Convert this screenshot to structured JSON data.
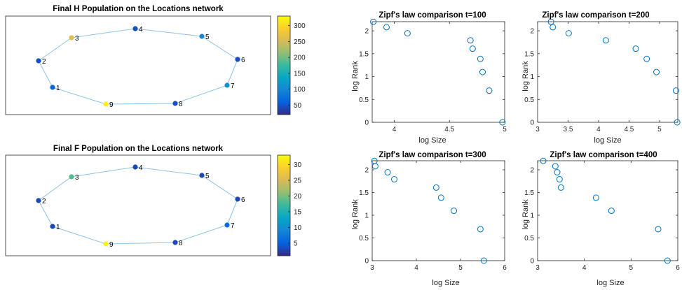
{
  "chart_data": [
    {
      "type": "network",
      "title": "Final H Population on the Locations network",
      "nodes": [
        {
          "id": "1",
          "value": 60
        },
        {
          "id": "2",
          "value": 45
        },
        {
          "id": "3",
          "value": 260
        },
        {
          "id": "4",
          "value": 45
        },
        {
          "id": "5",
          "value": 100
        },
        {
          "id": "6",
          "value": 45
        },
        {
          "id": "7",
          "value": 110
        },
        {
          "id": "8",
          "value": 45
        },
        {
          "id": "9",
          "value": 320
        }
      ],
      "edges": [
        [
          "1",
          "2"
        ],
        [
          "2",
          "3"
        ],
        [
          "3",
          "4"
        ],
        [
          "4",
          "5"
        ],
        [
          "5",
          "6"
        ],
        [
          "6",
          "7"
        ],
        [
          "7",
          "8"
        ],
        [
          "8",
          "9"
        ],
        [
          "9",
          "1"
        ]
      ],
      "colorbar": {
        "ticks": [
          50,
          100,
          150,
          200,
          250,
          300
        ],
        "min": 20,
        "max": 330,
        "colormap": "parula"
      }
    },
    {
      "type": "network",
      "title": "Final F Population on the Locations network",
      "nodes": [
        {
          "id": "1",
          "value": 3
        },
        {
          "id": "2",
          "value": 3
        },
        {
          "id": "3",
          "value": 18
        },
        {
          "id": "4",
          "value": 3
        },
        {
          "id": "5",
          "value": 3
        },
        {
          "id": "6",
          "value": 3
        },
        {
          "id": "7",
          "value": 6
        },
        {
          "id": "8",
          "value": 3
        },
        {
          "id": "9",
          "value": 32
        }
      ],
      "edges": [
        [
          "1",
          "2"
        ],
        [
          "2",
          "3"
        ],
        [
          "3",
          "4"
        ],
        [
          "4",
          "5"
        ],
        [
          "5",
          "6"
        ],
        [
          "6",
          "7"
        ],
        [
          "7",
          "8"
        ],
        [
          "8",
          "9"
        ],
        [
          "9",
          "1"
        ]
      ],
      "colorbar": {
        "ticks": [
          5,
          10,
          15,
          20,
          25,
          30
        ],
        "min": 1,
        "max": 33,
        "colormap": "parula"
      }
    },
    {
      "type": "scatter",
      "title": "Zipf's law comparison t=100",
      "xlabel": "log Size",
      "ylabel": "log Rank",
      "xlim": [
        3.8,
        5.0
      ],
      "ylim": [
        0,
        2.2
      ],
      "xticks": [
        "4",
        "4.5",
        "5"
      ],
      "xtickvals": [
        4,
        4.5,
        5
      ],
      "yticks": [
        "0",
        "0.5",
        "1",
        "1.5",
        "2"
      ],
      "ytickvals": [
        0,
        0.5,
        1,
        1.5,
        2
      ],
      "x": [
        3.81,
        3.93,
        4.12,
        4.69,
        4.71,
        4.78,
        4.8,
        4.86,
        4.98
      ],
      "y": [
        2.197,
        2.079,
        1.946,
        1.792,
        1.609,
        1.386,
        1.099,
        0.693,
        0
      ]
    },
    {
      "type": "scatter",
      "title": "Zipf's law comparison t=200",
      "xlabel": "log Size",
      "ylabel": "log Rank",
      "xlim": [
        3.0,
        5.3
      ],
      "ylim": [
        0,
        2.2
      ],
      "xticks": [
        "3",
        "3.5",
        "4",
        "4.5",
        "5"
      ],
      "xtickvals": [
        3,
        3.5,
        4,
        4.5,
        5
      ],
      "yticks": [
        "0",
        "0.5",
        "1",
        "1.5",
        "2"
      ],
      "ytickvals": [
        0,
        0.5,
        1,
        1.5,
        2
      ],
      "x": [
        3.22,
        3.25,
        3.51,
        4.12,
        4.61,
        4.79,
        4.95,
        5.27,
        5.29
      ],
      "y": [
        2.197,
        2.079,
        1.946,
        1.792,
        1.609,
        1.386,
        1.099,
        0.693,
        0
      ]
    },
    {
      "type": "scatter",
      "title": "Zipf's law comparison t=300",
      "xlabel": "log Size",
      "ylabel": "log Rank",
      "xlim": [
        3.0,
        6.0
      ],
      "ylim": [
        0,
        2.2
      ],
      "xticks": [
        "3",
        "4",
        "5",
        "6"
      ],
      "xtickvals": [
        3,
        4,
        5,
        6
      ],
      "yticks": [
        "0",
        "0.5",
        "1",
        "1.5",
        "2"
      ],
      "ytickvals": [
        0,
        0.5,
        1,
        1.5,
        2
      ],
      "x": [
        3.05,
        3.07,
        3.35,
        3.5,
        4.45,
        4.56,
        4.85,
        5.45,
        5.53
      ],
      "y": [
        2.197,
        2.079,
        1.946,
        1.792,
        1.609,
        1.386,
        1.099,
        0.693,
        0
      ]
    },
    {
      "type": "scatter",
      "title": "Zipf's law comparison t=400",
      "xlabel": "log Size",
      "ylabel": "log Rank",
      "xlim": [
        3.0,
        6.0
      ],
      "ylim": [
        0,
        2.2
      ],
      "xticks": [
        "3",
        "4",
        "5",
        "6"
      ],
      "xtickvals": [
        3,
        4,
        5,
        6
      ],
      "yticks": [
        "0",
        "0.5",
        "1",
        "1.5",
        "2"
      ],
      "ytickvals": [
        0,
        0.5,
        1,
        1.5,
        2
      ],
      "x": [
        3.12,
        3.38,
        3.42,
        3.47,
        3.5,
        4.25,
        4.58,
        5.58,
        5.78
      ],
      "y": [
        2.197,
        2.079,
        1.946,
        1.792,
        1.609,
        1.386,
        1.099,
        0.693,
        0
      ]
    }
  ],
  "colors": {
    "edge": "#8fc2e6",
    "marker": "#0072bd",
    "frame": "#262626"
  }
}
